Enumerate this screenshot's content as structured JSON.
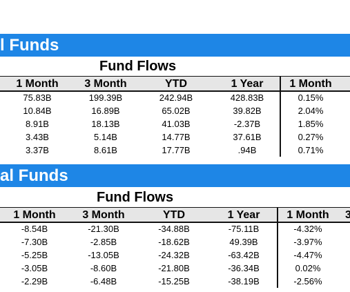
{
  "sections": [
    {
      "banner": "l Funds",
      "group_title": "Fund Flows",
      "columns": [
        "1 Month",
        "3 Month",
        "YTD",
        "1 Year",
        "1 Month",
        ""
      ],
      "rows": [
        [
          "75.83B",
          "199.39B",
          "242.94B",
          "428.83B",
          "0.15%"
        ],
        [
          "10.84B",
          "16.89B",
          "65.02B",
          "39.82B",
          "2.04%"
        ],
        [
          "8.91B",
          "18.13B",
          "41.03B",
          "-2.37B",
          "1.85%"
        ],
        [
          "3.43B",
          "5.14B",
          "14.77B",
          "37.61B",
          "0.27%"
        ],
        [
          "3.37B",
          "8.61B",
          "17.77B",
          ".94B",
          "0.71%"
        ]
      ]
    },
    {
      "banner": "al Funds",
      "group_title": "Fund Flows",
      "columns": [
        "1 Month",
        "3 Month",
        "YTD",
        "1 Year",
        "1 Month",
        "3"
      ],
      "rows": [
        [
          "-8.54B",
          "-21.30B",
          "-34.88B",
          "-75.11B",
          "-4.32%"
        ],
        [
          "-7.30B",
          "-2.85B",
          "-18.62B",
          "49.39B",
          "-3.97%"
        ],
        [
          "-5.25B",
          "-13.05B",
          "-24.32B",
          "-63.42B",
          "-4.47%"
        ],
        [
          "-3.05B",
          "-8.60B",
          "-21.80B",
          "-36.34B",
          "0.02%"
        ],
        [
          "-2.29B",
          "-6.48B",
          "-15.25B",
          "-38.19B",
          "-2.56%"
        ]
      ]
    }
  ]
}
